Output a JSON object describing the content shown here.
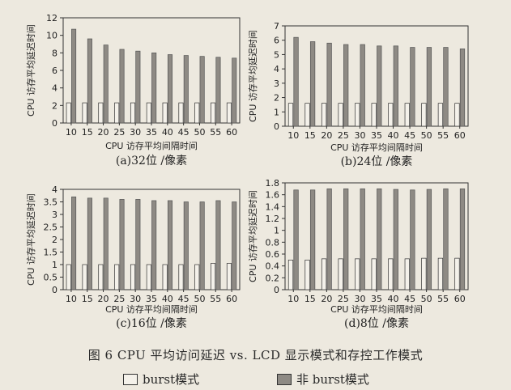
{
  "chart_data": [
    {
      "type": "bar",
      "title": "(a)32位 /像素",
      "xlabel": "CPU 访存平均间隔时间",
      "ylabel": "CPU 访存平均延迟时间",
      "categories": [
        "10",
        "15",
        "20",
        "25",
        "30",
        "35",
        "40",
        "45",
        "50",
        "55",
        "60"
      ],
      "ylim": [
        0,
        12
      ],
      "yticks": [
        0,
        2,
        4,
        6,
        8,
        10,
        12
      ],
      "series": [
        {
          "name": "burst模式",
          "values": [
            2.3,
            2.3,
            2.3,
            2.3,
            2.3,
            2.3,
            2.3,
            2.3,
            2.3,
            2.3,
            2.3
          ]
        },
        {
          "name": "非 burst模式",
          "values": [
            10.7,
            9.6,
            8.9,
            8.4,
            8.2,
            8.0,
            7.8,
            7.7,
            7.6,
            7.5,
            7.4
          ]
        }
      ]
    },
    {
      "type": "bar",
      "title": "(b)24位 /像素",
      "xlabel": "CPU 访存平均间隔时间",
      "ylabel": "CPU 访存平均延迟时间",
      "categories": [
        "10",
        "15",
        "20",
        "25",
        "30",
        "35",
        "40",
        "45",
        "50",
        "55",
        "60"
      ],
      "ylim": [
        0,
        7
      ],
      "yticks": [
        0,
        1,
        2,
        3,
        4,
        5,
        6,
        7
      ],
      "series": [
        {
          "name": "burst模式",
          "values": [
            1.6,
            1.6,
            1.6,
            1.6,
            1.6,
            1.6,
            1.6,
            1.6,
            1.6,
            1.6,
            1.6
          ]
        },
        {
          "name": "非 burst模式",
          "values": [
            6.2,
            5.9,
            5.8,
            5.7,
            5.7,
            5.6,
            5.6,
            5.5,
            5.5,
            5.5,
            5.4
          ]
        }
      ]
    },
    {
      "type": "bar",
      "title": "(c)16位 /像素",
      "xlabel": "CPU 访存平均间隔时间",
      "ylabel": "CPU 访存平均延迟时间",
      "categories": [
        "10",
        "15",
        "20",
        "25",
        "30",
        "35",
        "40",
        "45",
        "50",
        "55",
        "60"
      ],
      "ylim": [
        0,
        4
      ],
      "yticks": [
        0,
        0.5,
        1,
        1.5,
        2,
        2.5,
        3,
        3.5,
        4
      ],
      "series": [
        {
          "name": "burst模式",
          "values": [
            1.0,
            1.0,
            1.0,
            1.0,
            1.0,
            1.0,
            1.0,
            1.0,
            1.0,
            1.05,
            1.05
          ]
        },
        {
          "name": "非 burst模式",
          "values": [
            3.7,
            3.65,
            3.65,
            3.6,
            3.6,
            3.55,
            3.55,
            3.5,
            3.5,
            3.55,
            3.5
          ]
        }
      ]
    },
    {
      "type": "bar",
      "title": "(d)8位 /像素",
      "xlabel": "CPU 访存平均间隔时间",
      "ylabel": "CPU 访存平均延迟时间",
      "categories": [
        "10",
        "15",
        "20",
        "25",
        "30",
        "35",
        "40",
        "45",
        "50",
        "55",
        "60"
      ],
      "ylim": [
        0,
        1.8
      ],
      "yticks": [
        0,
        0.2,
        0.4,
        0.6,
        0.8,
        1,
        1.2,
        1.4,
        1.6,
        1.8
      ],
      "series": [
        {
          "name": "burst模式",
          "values": [
            0.5,
            0.5,
            0.52,
            0.52,
            0.52,
            0.52,
            0.52,
            0.52,
            0.53,
            0.53,
            0.53
          ]
        },
        {
          "name": "非 burst模式",
          "values": [
            1.68,
            1.68,
            1.7,
            1.7,
            1.7,
            1.7,
            1.69,
            1.68,
            1.69,
            1.7,
            1.7
          ]
        }
      ]
    }
  ],
  "figure_caption": "图 6   CPU 平均访问延迟 vs. LCD 显示模式和存控工作模式",
  "legend": {
    "burst_label": "burst模式",
    "non_burst_label": "非 burst模式"
  },
  "colors": {
    "burst": "#f4f1ea",
    "non_burst": "#8e8a84",
    "axis": "#333333",
    "background": "#ede9df"
  }
}
